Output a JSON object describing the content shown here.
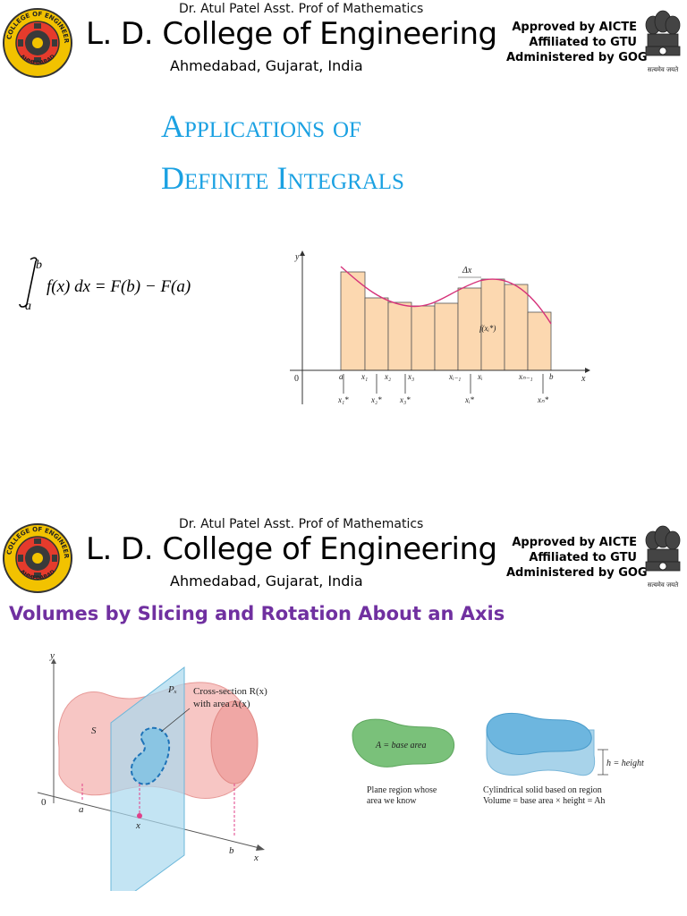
{
  "header": {
    "author": "Dr. Atul Patel  Asst. Prof  of Mathematics",
    "college": "L. D. College of Engineering",
    "location": "Ahmedabad, Gujarat, India",
    "approvals": [
      "Approved by AICTE",
      "Affiliated to GTU",
      "Administered by GOG"
    ],
    "logo_text": "L.D. COLLEGE OF ENGINEERING",
    "logo_bottom_text": "AHMEDABAD",
    "emblem_motto": "सत्यमेव जयते",
    "logo_icon": "college-seal-icon",
    "emblem_icon": "national-emblem-icon"
  },
  "slide1": {
    "title_line1": "Applications of",
    "title_line2": "Definite Integrals",
    "formula": {
      "lower": "a",
      "upper": "b",
      "body": "f(x) dx = F(b) − F(a)"
    },
    "graph": {
      "y_axis": "y",
      "x_axis": "x",
      "origin": "0",
      "delta": "Δx",
      "function_label": "f(xᵢ*)",
      "ticks": [
        "a",
        "x₁",
        "x₂",
        "x₃",
        "xᵢ₋₁",
        "xᵢ",
        "xₙ₋₁",
        "b"
      ],
      "sample_points": [
        "x₁*",
        "x₂*",
        "x₃*",
        "xᵢ*",
        "xₙ*"
      ]
    }
  },
  "slide2": {
    "title": "Volumes by Slicing and Rotation About an Axis",
    "solid_figure": {
      "y_axis": "y",
      "x_axis": "x",
      "origin": "0",
      "solid_label": "S",
      "plane_label": "Pₓ",
      "cross_section_line1": "Cross-section R(x)",
      "cross_section_line2": "with area A(x)",
      "tick_a": "a",
      "tick_x": "x",
      "tick_b": "b"
    },
    "cylinder_figure": {
      "base_label": "A = base area",
      "base_caption_line1": "Plane region whose",
      "base_caption_line2": "area we know",
      "height_label": "h = height",
      "cyl_caption_line1": "Cylindrical solid based on region",
      "cyl_caption_line2": "Volume = base area × height = Ah"
    }
  }
}
